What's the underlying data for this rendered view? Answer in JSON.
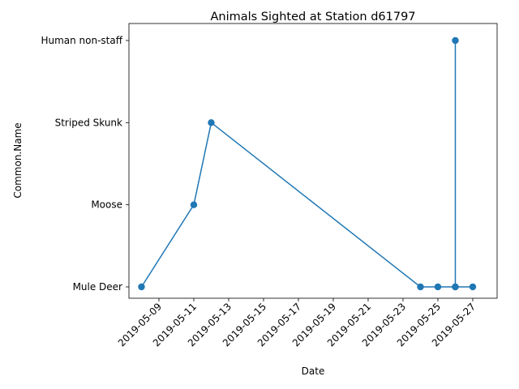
{
  "chart_data": {
    "type": "line",
    "title": "Animals Sighted at Station d61797",
    "xlabel": "Date",
    "ylabel": "Common.Name",
    "x_tick_labels": [
      "2019-05-09",
      "2019-05-11",
      "2019-05-13",
      "2019-05-15",
      "2019-05-17",
      "2019-05-19",
      "2019-05-21",
      "2019-05-23",
      "2019-05-25",
      "2019-05-27"
    ],
    "y_categories": [
      "Mule Deer",
      "Moose",
      "Striped Skunk",
      "Human non-staff"
    ],
    "series": [
      {
        "color": "#1f77b4",
        "marker": "circle",
        "points": [
          {
            "x": "2019-05-08",
            "y": "Mule Deer"
          },
          {
            "x": "2019-05-11",
            "y": "Moose"
          },
          {
            "x": "2019-05-12",
            "y": "Striped Skunk"
          },
          {
            "x": "2019-05-24",
            "y": "Mule Deer"
          },
          {
            "x": "2019-05-25",
            "y": "Mule Deer"
          },
          {
            "x": "2019-05-26",
            "y": "Mule Deer"
          },
          {
            "x": "2019-05-26",
            "y": "Human non-staff"
          },
          {
            "x": "2019-05-26",
            "y": "Mule Deer"
          },
          {
            "x": "2019-05-27",
            "y": "Mule Deer"
          }
        ]
      }
    ],
    "grid": false,
    "legend": "none"
  }
}
